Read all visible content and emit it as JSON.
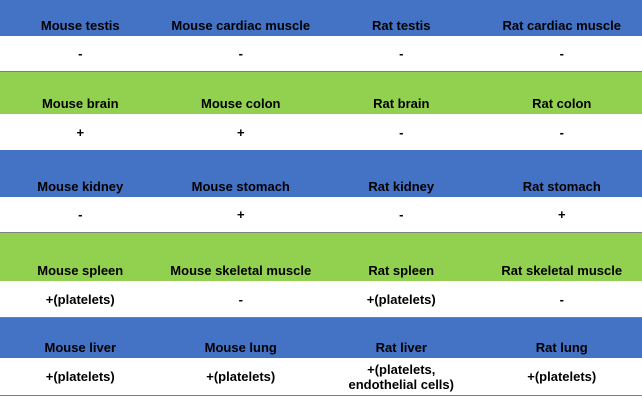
{
  "rows": [
    {
      "header": [
        "Mouse testis",
        "Mouse cardiac muscle",
        "Rat testis",
        "Rat cardiac muscle"
      ],
      "values": [
        "-",
        "-",
        "-",
        "-"
      ],
      "color": "#4472c4"
    },
    {
      "header": [
        "Mouse brain",
        "Mouse colon",
        "Rat brain",
        "Rat colon"
      ],
      "values": [
        "+",
        "+",
        "-",
        "-"
      ],
      "color": "#92d050"
    },
    {
      "header": [
        "Mouse kidney",
        "Mouse stomach",
        "Rat kidney",
        "Rat stomach"
      ],
      "values": [
        "-",
        "+",
        "-",
        "+"
      ],
      "color": "#4472c4"
    },
    {
      "header": [
        "Mouse spleen",
        "Mouse skeletal muscle",
        "Rat spleen",
        "Rat skeletal muscle"
      ],
      "values": [
        "+(platelets)",
        "-",
        "+(platelets)",
        "-"
      ],
      "color": "#92d050"
    },
    {
      "header": [
        "Mouse liver",
        "Mouse lung",
        "Rat liver",
        "Rat lung"
      ],
      "values": [
        "+(platelets)",
        "+(platelets)",
        "+(platelets, endothelial cells)",
        "+(platelets)"
      ],
      "color": "#4472c4"
    }
  ]
}
